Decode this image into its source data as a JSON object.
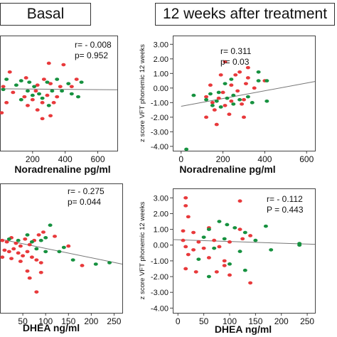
{
  "headers": {
    "left": "Basal",
    "right": "12 weeks after treatment"
  },
  "colors": {
    "red": "#e8393b",
    "green": "#16913f",
    "axis": "#444444",
    "fit": "#777777",
    "text": "#111111"
  },
  "chart_data": [
    {
      "id": "basal-noradrenaline",
      "type": "scatter",
      "xlabel": "Noradrenaline  pg/ml",
      "ylabel": "",
      "xticks": [
        200,
        400,
        600
      ],
      "xlim": [
        0,
        720
      ],
      "ylim": [
        -4.3,
        3.6
      ],
      "annotation": [
        "r= - 0.008",
        "p= 0.952"
      ],
      "fit": {
        "x": [
          0,
          720
        ],
        "y": [
          -0.05,
          -0.12
        ]
      },
      "series": [
        {
          "color": "red",
          "points": [
            [
              300,
              1.7
            ],
            [
              390,
              1.6
            ],
            [
              60,
              1.1
            ],
            [
              160,
              0.7
            ],
            [
              270,
              0.6
            ],
            [
              470,
              0.6
            ],
            [
              230,
              0.2
            ],
            [
              310,
              0.3
            ],
            [
              370,
              0.1
            ],
            [
              440,
              0.1
            ],
            [
              20,
              0.1
            ],
            [
              80,
              -0.3
            ],
            [
              150,
              -0.6
            ],
            [
              220,
              -0.2
            ],
            [
              290,
              -0.5
            ],
            [
              350,
              -0.6
            ],
            [
              200,
              -0.8
            ],
            [
              40,
              -1.0
            ],
            [
              170,
              -1.2
            ],
            [
              260,
              -1.0
            ],
            [
              330,
              -1.0
            ],
            [
              230,
              -1.5
            ],
            [
              10,
              -1.7
            ],
            [
              310,
              -1.9
            ],
            [
              260,
              -2.1
            ]
          ]
        },
        {
          "color": "green",
          "points": [
            [
              40,
              0.6
            ],
            [
              130,
              0.5
            ],
            [
              180,
              0.4
            ],
            [
              290,
              0.4
            ],
            [
              350,
              0.6
            ],
            [
              420,
              0.3
            ],
            [
              500,
              0.4
            ],
            [
              20,
              -0.1
            ],
            [
              100,
              0.2
            ],
            [
              170,
              -0.2
            ],
            [
              210,
              0.1
            ],
            [
              240,
              -0.4
            ],
            [
              320,
              -0.2
            ],
            [
              380,
              -0.2
            ],
            [
              440,
              -0.4
            ],
            [
              480,
              -0.6
            ],
            [
              200,
              -0.5
            ],
            [
              260,
              -0.7
            ],
            [
              130,
              -0.8
            ],
            [
              300,
              -1.2
            ]
          ]
        }
      ]
    },
    {
      "id": "week12-noradrenaline",
      "type": "scatter",
      "xlabel": "Noradrenaline  pg/ml",
      "ylabel": "z score VFT phonemic 12 weeks",
      "yticks": [
        "3.00",
        "2.00",
        "1.00",
        "0.00",
        "-1.00",
        "-2.00",
        "-3.00",
        "-4.00"
      ],
      "yticks_values": [
        3,
        2,
        1,
        0,
        -1,
        -2,
        -3,
        -4
      ],
      "xticks": [
        0,
        200,
        400,
        600
      ],
      "xlim": [
        -40,
        640
      ],
      "ylim": [
        -4.3,
        3.6
      ],
      "annotation": [
        "r= 0.311",
        "p= 0.03"
      ],
      "fit": {
        "x": [
          0,
          640
        ],
        "y": [
          -1.25,
          0.45
        ]
      },
      "series": [
        {
          "color": "red",
          "points": [
            [
              210,
              1.8
            ],
            [
              320,
              1.4
            ],
            [
              280,
              1.1
            ],
            [
              190,
              0.9
            ],
            [
              260,
              0.9
            ],
            [
              320,
              0.7
            ],
            [
              400,
              0.5
            ],
            [
              140,
              0.2
            ],
            [
              240,
              0.2
            ],
            [
              310,
              0.3
            ],
            [
              200,
              -0.3
            ],
            [
              270,
              -0.2
            ],
            [
              350,
              0.0
            ],
            [
              120,
              -0.6
            ],
            [
              180,
              -0.7
            ],
            [
              240,
              -0.9
            ],
            [
              300,
              -0.8
            ],
            [
              150,
              -1.0
            ],
            [
              210,
              -1.2
            ],
            [
              290,
              -1.1
            ],
            [
              160,
              -1.5
            ],
            [
              230,
              -1.8
            ],
            [
              120,
              -2.0
            ],
            [
              170,
              -2.5
            ],
            [
              300,
              -2.0
            ]
          ]
        },
        {
          "color": "green",
          "points": [
            [
              370,
              1.1
            ],
            [
              240,
              0.6
            ],
            [
              210,
              0.3
            ],
            [
              370,
              0.5
            ],
            [
              410,
              0.5
            ],
            [
              60,
              -0.5
            ],
            [
              140,
              -0.4
            ],
            [
              180,
              -0.3
            ],
            [
              250,
              -0.5
            ],
            [
              320,
              -0.6
            ],
            [
              120,
              -0.8
            ],
            [
              170,
              -0.9
            ],
            [
              220,
              -0.7
            ],
            [
              280,
              -0.8
            ],
            [
              340,
              -1.0
            ],
            [
              410,
              -0.9
            ],
            [
              150,
              -1.2
            ],
            [
              190,
              -1.3
            ],
            [
              250,
              -1.1
            ],
            [
              25,
              -4.2
            ]
          ]
        }
      ]
    },
    {
      "id": "basal-dhea",
      "type": "scatter",
      "xlabel": "DHEA ng/ml",
      "ylabel": "",
      "xticks": [
        50,
        100,
        150,
        200,
        250
      ],
      "xlim": [
        0,
        268
      ],
      "ylim": [
        -5.0,
        4.3
      ],
      "annotation": [
        "r= - 0.275",
        "p= 0.044"
      ],
      "fit": {
        "x": [
          0,
          268
        ],
        "y": [
          0.3,
          -1.5
        ]
      },
      "series": [
        {
          "color": "red",
          "points": [
            [
              5,
              0.2
            ],
            [
              15,
              0.1
            ],
            [
              25,
              0.4
            ],
            [
              35,
              0.0
            ],
            [
              45,
              -0.2
            ],
            [
              55,
              0.3
            ],
            [
              65,
              -0.1
            ],
            [
              75,
              0.2
            ],
            [
              85,
              0.6
            ],
            [
              95,
              0.8
            ],
            [
              10,
              -0.5
            ],
            [
              20,
              -0.6
            ],
            [
              30,
              -0.4
            ],
            [
              40,
              -0.7
            ],
            [
              50,
              -0.9
            ],
            [
              60,
              -0.6
            ],
            [
              70,
              -1.0
            ],
            [
              80,
              -1.2
            ],
            [
              90,
              -1.4
            ],
            [
              5,
              -1.0
            ],
            [
              25,
              -1.1
            ],
            [
              45,
              -1.3
            ],
            [
              120,
              0.5
            ],
            [
              150,
              -0.2
            ],
            [
              180,
              -1.6
            ],
            [
              90,
              -2.1
            ],
            [
              65,
              -2.5
            ],
            [
              80,
              -3.5
            ],
            [
              60,
              -2.0
            ]
          ]
        },
        {
          "color": "green",
          "points": [
            [
              20,
              0.3
            ],
            [
              40,
              0.2
            ],
            [
              60,
              0.6
            ],
            [
              70,
              0.1
            ],
            [
              90,
              0.2
            ],
            [
              100,
              0.4
            ],
            [
              110,
              1.3
            ],
            [
              80,
              -0.4
            ],
            [
              100,
              -0.6
            ],
            [
              130,
              -0.6
            ],
            [
              140,
              -0.3
            ],
            [
              160,
              -1.2
            ],
            [
              210,
              -1.5
            ],
            [
              240,
              -1.4
            ]
          ]
        }
      ]
    },
    {
      "id": "week12-dhea",
      "type": "scatter",
      "xlabel": "DHEA ng/ml",
      "ylabel": "z score VFT phonemic 12 weeks",
      "yticks": [
        "3.00",
        "2.00",
        "1.00",
        "0.00",
        "-1.00",
        "-2.00",
        "-3.00",
        "-4.00"
      ],
      "yticks_values": [
        3,
        2,
        1,
        0,
        -1,
        -2,
        -3,
        -4
      ],
      "xticks": [
        0,
        50,
        100,
        150,
        200,
        250
      ],
      "xlim": [
        -10,
        265
      ],
      "ylim": [
        -4.3,
        3.6
      ],
      "annotation": [
        "r= - 0.112",
        "P = 0.443"
      ],
      "fit": {
        "x": [
          -10,
          265
        ],
        "y": [
          0.35,
          0.05
        ]
      },
      "series": [
        {
          "color": "red",
          "points": [
            [
              15,
              3.0
            ],
            [
              120,
              2.8
            ],
            [
              15,
              2.5
            ],
            [
              20,
              1.8
            ],
            [
              10,
              0.9
            ],
            [
              30,
              0.8
            ],
            [
              60,
              1.1
            ],
            [
              120,
              1.0
            ],
            [
              140,
              0.6
            ],
            [
              10,
              0.3
            ],
            [
              40,
              0.2
            ],
            [
              70,
              0.3
            ],
            [
              100,
              0.2
            ],
            [
              125,
              0.4
            ],
            [
              15,
              -0.1
            ],
            [
              30,
              -0.3
            ],
            [
              50,
              -0.2
            ],
            [
              80,
              -0.1
            ],
            [
              20,
              -0.6
            ],
            [
              60,
              -0.8
            ],
            [
              90,
              -1.0
            ],
            [
              15,
              -1.5
            ],
            [
              35,
              -1.7
            ],
            [
              75,
              -1.7
            ],
            [
              100,
              -1.9
            ],
            [
              140,
              -2.4
            ],
            [
              90,
              -1.3
            ]
          ]
        },
        {
          "color": "green",
          "points": [
            [
              80,
              1.5
            ],
            [
              95,
              1.3
            ],
            [
              170,
              1.2
            ],
            [
              60,
              1.0
            ],
            [
              110,
              1.1
            ],
            [
              130,
              0.8
            ],
            [
              50,
              0.5
            ],
            [
              90,
              0.4
            ],
            [
              150,
              0.3
            ],
            [
              235,
              0.1
            ],
            [
              70,
              -0.2
            ],
            [
              120,
              -0.4
            ],
            [
              180,
              -0.3
            ],
            [
              40,
              -0.9
            ],
            [
              100,
              -1.2
            ],
            [
              130,
              -1.6
            ],
            [
              60,
              -2.0
            ],
            [
              235,
              0.0
            ]
          ]
        }
      ]
    }
  ]
}
